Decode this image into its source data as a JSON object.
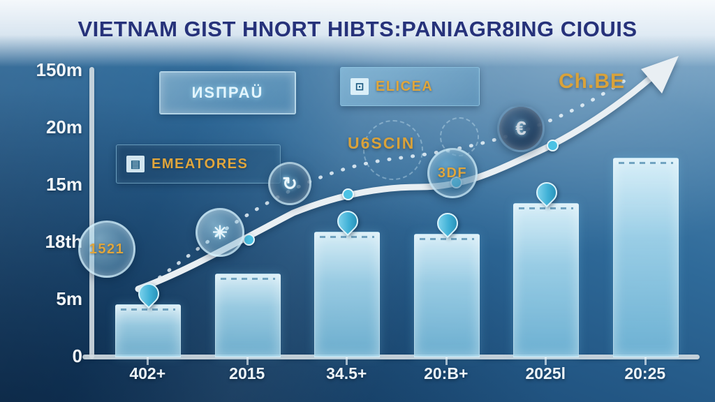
{
  "title": "VIETNAM GIST HNORT HIBTS:PANIAGR8ING CIOUIS",
  "colors": {
    "background_top": "#7fa9c9",
    "background_deep": "#143c63",
    "bar_top": "#def3fb",
    "bar_bottom": "#7cc3e2",
    "accent_gold": "#d9a23a",
    "title_text": "#26327a",
    "axis": "#d3dde3",
    "trend_line": "#e9eff3",
    "pin": "#3fb0d6"
  },
  "badges": {
    "glass_box_1": "ИSПРАÜ",
    "emeatores": "EMEATORES",
    "emeatores_icon": "▤",
    "circle_1521": "1521",
    "asterisk_icon": "✳",
    "refresh_icon": "↻",
    "elicea": "ELICEA",
    "elicea_icon": "⊡",
    "u6scin": "U6SCIN",
    "circle_3df": "3DF",
    "euro_icon": "€",
    "chbe": "Ch.BE"
  },
  "chart_data": {
    "type": "bar",
    "title": "VIETNAM GIST HNORT HIBTS:PANIAGR8ING CIOUIS",
    "categories": [
      "402+",
      "2015",
      "34.5+",
      "20:B+",
      "2025l",
      "20:25"
    ],
    "series": [
      {
        "name": "bars",
        "values": [
          27,
          43,
          65,
          64,
          80,
          104
        ]
      }
    ],
    "ylim": [
      0,
      150
    ],
    "y_tick_labels": [
      "150m",
      "20m",
      "15m",
      "18th",
      "5m",
      "0"
    ],
    "xlabel": "",
    "ylabel": "",
    "grid": false,
    "legend": "none",
    "trend_line": "rising S-curve ending in large arrow, with dotted secondary trend",
    "pin_markers": [
      0,
      2,
      3,
      4
    ]
  }
}
